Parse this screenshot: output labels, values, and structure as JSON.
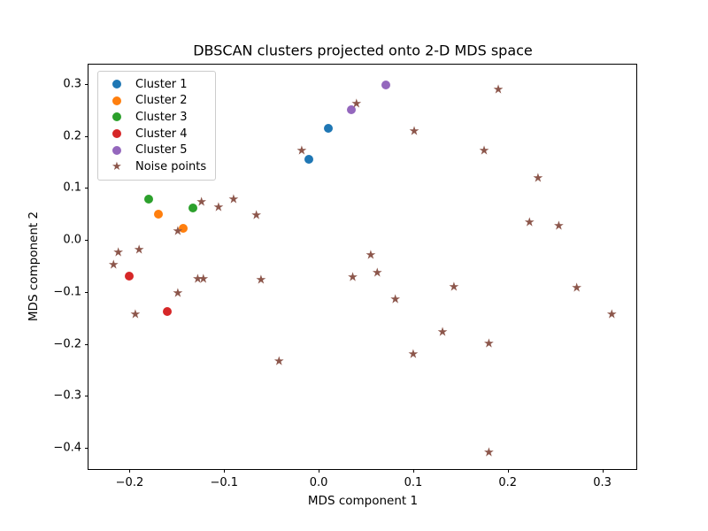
{
  "figure": {
    "title": "DBSCAN clusters projected onto 2-D MDS space",
    "xlabel": "MDS component 1",
    "ylabel": "MDS component 2"
  },
  "chart_data": {
    "type": "scatter",
    "title": "DBSCAN clusters projected onto 2-D MDS space",
    "xlabel": "MDS component 1",
    "ylabel": "MDS component 2",
    "xlim": [
      -0.2435,
      0.336
    ],
    "ylim": [
      -0.4407,
      0.337
    ],
    "grid": false,
    "legend_position": "upper-left",
    "x_ticks": [
      -0.2,
      -0.1,
      0.0,
      0.1,
      0.2,
      0.3
    ],
    "x_tick_labels": [
      "−0.2",
      "−0.1",
      "0.0",
      "0.1",
      "0.2",
      "0.3"
    ],
    "y_ticks": [
      0.3,
      0.2,
      0.1,
      0.0,
      -0.1,
      -0.2,
      -0.3,
      -0.4
    ],
    "y_tick_labels": [
      "0.3",
      "0.2",
      "0.1",
      "0.0",
      "−0.1",
      "−0.2",
      "−0.3",
      "−0.4"
    ],
    "series": [
      {
        "name": "Cluster 1",
        "marker": "circle",
        "color": "#1f77b4",
        "points": [
          [
            0.01,
            0.215
          ],
          [
            -0.01,
            0.155
          ]
        ]
      },
      {
        "name": "Cluster 2",
        "marker": "circle",
        "color": "#ff7f0e",
        "points": [
          [
            -0.17,
            0.049
          ],
          [
            -0.143,
            0.023
          ]
        ]
      },
      {
        "name": "Cluster 3",
        "marker": "circle",
        "color": "#2ca02c",
        "points": [
          [
            -0.18,
            0.078
          ],
          [
            -0.133,
            0.062
          ]
        ]
      },
      {
        "name": "Cluster 4",
        "marker": "circle",
        "color": "#d62728",
        "points": [
          [
            -0.2,
            -0.069
          ],
          [
            -0.16,
            -0.138
          ]
        ]
      },
      {
        "name": "Cluster 5",
        "marker": "circle",
        "color": "#9467bd",
        "points": [
          [
            0.035,
            0.25
          ],
          [
            0.071,
            0.298
          ]
        ]
      },
      {
        "name": "Noise points",
        "marker": "star",
        "color": "#8c564b",
        "points": [
          [
            -0.018,
            0.17
          ],
          [
            0.04,
            0.26
          ],
          [
            0.19,
            0.287
          ],
          [
            0.101,
            0.207
          ],
          [
            0.175,
            0.17
          ],
          [
            0.232,
            0.117
          ],
          [
            0.223,
            0.032
          ],
          [
            0.254,
            0.025
          ],
          [
            -0.124,
            0.071
          ],
          [
            -0.106,
            0.062
          ],
          [
            -0.09,
            0.076
          ],
          [
            -0.066,
            0.046
          ],
          [
            -0.149,
            0.015
          ],
          [
            -0.212,
            -0.025
          ],
          [
            -0.19,
            -0.021
          ],
          [
            -0.217,
            -0.049
          ],
          [
            -0.128,
            -0.077
          ],
          [
            -0.122,
            -0.076
          ],
          [
            -0.061,
            -0.078
          ],
          [
            -0.149,
            -0.103
          ],
          [
            -0.194,
            -0.145
          ],
          [
            0.055,
            -0.03
          ],
          [
            0.062,
            -0.065
          ],
          [
            0.036,
            -0.073
          ],
          [
            0.143,
            -0.092
          ],
          [
            0.081,
            -0.116
          ],
          [
            0.131,
            -0.179
          ],
          [
            0.18,
            -0.2
          ],
          [
            0.1,
            -0.222
          ],
          [
            -0.042,
            -0.234
          ],
          [
            0.18,
            -0.41
          ],
          [
            0.273,
            -0.093
          ],
          [
            0.31,
            -0.145
          ]
        ]
      }
    ],
    "star_glyph": "★"
  }
}
